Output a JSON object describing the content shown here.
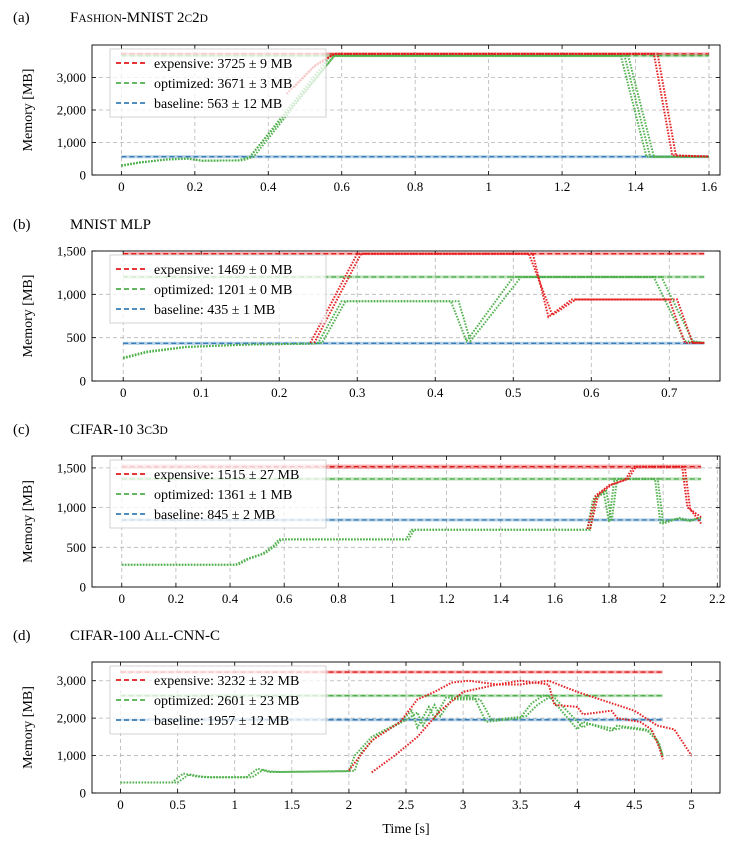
{
  "colors": {
    "expensive": "#e41a1c",
    "optimized": "#4daf4a",
    "baseline": "#377eb8"
  },
  "xlabel": "Time [s]",
  "chart_data": [
    {
      "type": "line",
      "panel": "(a)",
      "title_parts": [
        {
          "t": "F",
          "sc": false
        },
        {
          "t": "ASHION",
          "sc": true
        },
        {
          "t": "-MNIST 2",
          "sc": false
        },
        {
          "t": "C",
          "sc": true
        },
        {
          "t": "2",
          "sc": false
        },
        {
          "t": "D",
          "sc": true
        }
      ],
      "ylabel": "Memory [MB]",
      "xlim": [
        -0.08,
        1.63
      ],
      "ylim": [
        0,
        4000
      ],
      "xticks": [
        0,
        0.2,
        0.4,
        0.6,
        0.8,
        1,
        1.2,
        1.4,
        1.6
      ],
      "xtick_labels": [
        "0",
        "0.2",
        "0.4",
        "0.6",
        "0.8",
        "1",
        "1.2",
        "1.4",
        "1.6"
      ],
      "yticks": [
        0,
        1000,
        2000,
        3000
      ],
      "ytick_labels": [
        "0",
        "1,000",
        "2,000",
        "3,000"
      ],
      "legend": [
        "expensive: 3725 ± 9 MB",
        "optimized: 3671 ± 3 MB",
        "baseline: 563 ± 12 MB"
      ],
      "hlines": [
        {
          "series": "expensive",
          "value": 3725,
          "band": 9
        },
        {
          "series": "optimized",
          "value": 3671,
          "band": 3
        },
        {
          "series": "baseline",
          "value": 563,
          "band": 12
        }
      ],
      "series": [
        {
          "name": "optimized",
          "runs": [
            {
              "x": [
                0,
                0.05,
                0.12,
                0.18,
                0.22,
                0.32,
                0.35,
                0.57,
                1.36,
                1.43,
                1.6
              ],
              "y": [
                280,
                380,
                480,
                510,
                440,
                450,
                560,
                3670,
                3670,
                560,
                560
              ]
            },
            {
              "x": [
                0,
                0.05,
                0.12,
                0.18,
                0.22,
                0.33,
                0.36,
                0.58,
                1.37,
                1.44,
                1.6
              ],
              "y": [
                300,
                390,
                470,
                500,
                440,
                450,
                560,
                3670,
                3670,
                560,
                560
              ]
            },
            {
              "x": [
                0,
                0.05,
                0.12,
                0.18,
                0.22,
                0.32,
                0.35,
                0.58,
                1.38,
                1.45,
                1.6
              ],
              "y": [
                290,
                385,
                475,
                505,
                440,
                450,
                560,
                3670,
                3670,
                560,
                560
              ]
            }
          ]
        },
        {
          "name": "expensive",
          "runs": [
            {
              "x": [
                0.45,
                0.52,
                0.58,
                1.45,
                1.5,
                1.6
              ],
              "y": [
                2500,
                3300,
                3725,
                3725,
                600,
                570
              ]
            },
            {
              "x": [
                0.47,
                0.53,
                0.58,
                1.46,
                1.51,
                1.6
              ],
              "y": [
                2700,
                3400,
                3725,
                3725,
                600,
                570
              ]
            }
          ]
        }
      ]
    },
    {
      "type": "line",
      "panel": "(b)",
      "title_parts": [
        {
          "t": "MNIST MLP",
          "sc": false
        }
      ],
      "ylabel": "Memory [MB]",
      "xlim": [
        -0.04,
        0.765
      ],
      "ylim": [
        0,
        1500
      ],
      "xticks": [
        0,
        0.1,
        0.2,
        0.3,
        0.4,
        0.5,
        0.6,
        0.7
      ],
      "xtick_labels": [
        "0",
        "0.1",
        "0.2",
        "0.3",
        "0.4",
        "0.5",
        "0.6",
        "0.7"
      ],
      "yticks": [
        0,
        500,
        1000,
        1500
      ],
      "ytick_labels": [
        "0",
        "500",
        "1,000",
        "1,500"
      ],
      "legend": [
        "expensive: 1469 ± 0 MB",
        "optimized: 1201 ± 0 MB",
        "baseline: 435 ± 1 MB"
      ],
      "hlines": [
        {
          "series": "expensive",
          "value": 1469,
          "band": 0
        },
        {
          "series": "optimized",
          "value": 1201,
          "band": 0
        },
        {
          "series": "baseline",
          "value": 435,
          "band": 1
        }
      ],
      "series": [
        {
          "name": "optimized",
          "runs": [
            {
              "x": [
                0,
                0.03,
                0.08,
                0.16,
                0.24,
                0.25,
                0.28,
                0.42,
                0.44,
                0.5,
                0.68,
                0.72,
                0.745
              ],
              "y": [
                260,
                330,
                390,
                420,
                430,
                440,
                920,
                920,
                460,
                1200,
                1200,
                460,
                440
              ]
            },
            {
              "x": [
                0,
                0.03,
                0.08,
                0.16,
                0.24,
                0.255,
                0.285,
                0.43,
                0.445,
                0.51,
                0.69,
                0.73,
                0.745
              ],
              "y": [
                270,
                340,
                395,
                420,
                430,
                440,
                920,
                920,
                460,
                1200,
                1200,
                460,
                440
              ]
            }
          ]
        },
        {
          "name": "expensive",
          "runs": [
            {
              "x": [
                0.24,
                0.3,
                0.52,
                0.55,
                0.58,
                0.7,
                0.72,
                0.745
              ],
              "y": [
                440,
                1469,
                1469,
                760,
                940,
                940,
                440,
                440
              ]
            },
            {
              "x": [
                0.245,
                0.305,
                0.525,
                0.545,
                0.575,
                0.71,
                0.73,
                0.745
              ],
              "y": [
                440,
                1469,
                1469,
                740,
                940,
                940,
                440,
                440
              ]
            }
          ]
        }
      ]
    },
    {
      "type": "line",
      "panel": "(c)",
      "title_parts": [
        {
          "t": "CIFAR-10 3",
          "sc": false
        },
        {
          "t": "C",
          "sc": true
        },
        {
          "t": "3",
          "sc": false
        },
        {
          "t": "D",
          "sc": true
        }
      ],
      "ylabel": "Memory [MB]",
      "xlim": [
        -0.11,
        2.21
      ],
      "ylim": [
        0,
        1650
      ],
      "xticks": [
        0,
        0.2,
        0.4,
        0.6,
        0.8,
        1,
        1.2,
        1.4,
        1.6,
        1.8,
        2,
        2.2
      ],
      "xtick_labels": [
        "0",
        "0.2",
        "0.4",
        "0.6",
        "0.8",
        "1",
        "1.2",
        "1.4",
        "1.6",
        "1.8",
        "2",
        "2.2"
      ],
      "yticks": [
        0,
        500,
        1000,
        1500
      ],
      "ytick_labels": [
        "0",
        "500",
        "1,000",
        "1,500"
      ],
      "legend": [
        "expensive: 1515 ± 27 MB",
        "optimized: 1361 ± 1 MB",
        "baseline: 845 ± 2 MB"
      ],
      "hlines": [
        {
          "series": "expensive",
          "value": 1515,
          "band": 27
        },
        {
          "series": "optimized",
          "value": 1361,
          "band": 1
        },
        {
          "series": "baseline",
          "value": 845,
          "band": 2
        }
      ],
      "series": [
        {
          "name": "optimized",
          "runs": [
            {
              "x": [
                0,
                0.42,
                0.46,
                0.52,
                0.56,
                0.58,
                1.05,
                1.07,
                1.72,
                1.74,
                1.78,
                1.8,
                1.82,
                1.97,
                1.99,
                2.05,
                2.1,
                2.14
              ],
              "y": [
                280,
                280,
                350,
                420,
                520,
                600,
                600,
                720,
                720,
                1100,
                1200,
                820,
                1361,
                1361,
                810,
                860,
                830,
                880
              ]
            },
            {
              "x": [
                0,
                0.43,
                0.47,
                0.53,
                0.57,
                0.59,
                1.06,
                1.08,
                1.73,
                1.75,
                1.79,
                1.81,
                1.83,
                1.98,
                2.0,
                2.06,
                2.1,
                2.14
              ],
              "y": [
                280,
                280,
                355,
                425,
                525,
                600,
                600,
                720,
                720,
                1110,
                1210,
                830,
                1361,
                1361,
                800,
                870,
                840,
                870
              ]
            }
          ]
        },
        {
          "name": "expensive",
          "runs": [
            {
              "x": [
                1.72,
                1.75,
                1.8,
                1.86,
                1.89,
                2.07,
                2.09,
                2.14
              ],
              "y": [
                730,
                1150,
                1280,
                1350,
                1515,
                1515,
                1000,
                880
              ]
            },
            {
              "x": [
                1.73,
                1.76,
                1.81,
                1.87,
                1.9,
                2.08,
                2.1,
                2.14
              ],
              "y": [
                730,
                1160,
                1290,
                1360,
                1515,
                1515,
                980,
                800
              ]
            }
          ]
        }
      ]
    },
    {
      "type": "line",
      "panel": "(d)",
      "title_parts": [
        {
          "t": "CIFAR-100 A",
          "sc": false
        },
        {
          "t": "LL",
          "sc": true
        },
        {
          "t": "-CNN-C",
          "sc": false
        }
      ],
      "ylabel": "Memory [MB]",
      "xlim": [
        -0.25,
        5.25
      ],
      "ylim": [
        0,
        3500
      ],
      "xticks": [
        0,
        0.5,
        1,
        1.5,
        2,
        2.5,
        3,
        3.5,
        4,
        4.5,
        5
      ],
      "xtick_labels": [
        "0",
        "0.5",
        "1",
        "1.5",
        "2",
        "2.5",
        "3",
        "3.5",
        "4",
        "4.5",
        "5"
      ],
      "yticks": [
        0,
        1000,
        2000,
        3000
      ],
      "ytick_labels": [
        "0",
        "1,000",
        "2,000",
        "3,000"
      ],
      "legend": [
        "expensive: 3232 ± 32 MB",
        "optimized: 2601 ± 23 MB",
        "baseline: 1957 ± 12 MB"
      ],
      "hlines": [
        {
          "series": "expensive",
          "value": 3232,
          "band": 32
        },
        {
          "series": "optimized",
          "value": 2601,
          "band": 23
        },
        {
          "series": "baseline",
          "value": 1957,
          "band": 12
        }
      ],
      "series": [
        {
          "name": "optimized",
          "runs": [
            {
              "x": [
                0,
                0.45,
                0.55,
                0.65,
                0.75,
                1.1,
                1.2,
                1.3,
                1.35,
                2.0,
                2.05,
                2.2,
                2.45,
                2.55,
                2.6,
                2.7,
                2.75,
                2.85,
                3.1,
                3.2,
                3.5,
                3.6,
                3.7,
                3.75,
                4.0,
                4.05,
                4.3,
                4.35,
                4.6,
                4.7,
                4.75
              ],
              "y": [
                280,
                280,
                520,
                450,
                420,
                420,
                650,
                560,
                560,
                580,
                1000,
                1500,
                1900,
                2200,
                1750,
                2300,
                2000,
                2550,
                2550,
                1900,
                2000,
                2400,
                2600,
                2600,
                1700,
                1900,
                1650,
                1800,
                1700,
                1400,
                1000
              ]
            },
            {
              "x": [
                0,
                0.5,
                0.6,
                0.7,
                0.8,
                1.15,
                1.25,
                1.3,
                1.4,
                2.05,
                2.1,
                2.25,
                2.5,
                2.6,
                2.65,
                2.75,
                2.8,
                2.9,
                3.15,
                3.25,
                3.55,
                3.65,
                3.75,
                3.8,
                4.05,
                4.1,
                4.35,
                4.4,
                4.65,
                4.72,
                4.75
              ],
              "y": [
                280,
                280,
                500,
                440,
                420,
                420,
                620,
                580,
                560,
                590,
                1050,
                1550,
                1950,
                2150,
                1800,
                2350,
                2050,
                2500,
                2500,
                1950,
                2050,
                2350,
                2550,
                2550,
                1750,
                1850,
                1700,
                1750,
                1650,
                1300,
                950
              ]
            }
          ]
        },
        {
          "name": "expensive",
          "runs": [
            {
              "x": [
                2.0,
                2.2,
                2.45,
                2.6,
                2.75,
                2.9,
                3.05,
                3.3,
                3.5,
                3.75,
                3.8,
                4.0,
                4.05,
                4.3,
                4.35,
                4.55,
                4.65,
                4.72,
                4.75
              ],
              "y": [
                600,
                1400,
                1900,
                2500,
                2700,
                2950,
                3000,
                2900,
                3000,
                2900,
                2350,
                2300,
                2100,
                2200,
                2000,
                1900,
                1700,
                1200,
                900
              ]
            },
            {
              "x": [
                2.2,
                2.4,
                2.6,
                2.8,
                3.0,
                3.3,
                3.5,
                3.75,
                4.0,
                4.2,
                4.5,
                4.7,
                4.85,
                5.0
              ],
              "y": [
                550,
                1000,
                1500,
                2200,
                2700,
                2900,
                2900,
                3000,
                2700,
                2500,
                2200,
                1800,
                1700,
                1000
              ]
            }
          ]
        }
      ]
    }
  ]
}
